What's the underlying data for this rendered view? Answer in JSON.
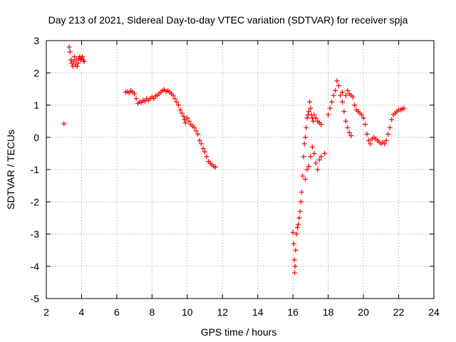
{
  "chart_data": {
    "type": "scatter",
    "title": "Day 213 of 2021, Sidereal Day-to-day VTEC variation (SDTVAR) for receiver spja",
    "xlabel": "GPS time / hours",
    "ylabel": "SDTVAR / TECUs",
    "xlim": [
      2,
      24
    ],
    "ylim": [
      -5,
      3
    ],
    "grid": true,
    "marker": "plus",
    "color": "#ff0000",
    "x_ticks": [
      "2",
      "4",
      "6",
      "8",
      "10",
      "12",
      "14",
      "16",
      "18",
      "20",
      "22",
      "24"
    ],
    "y_ticks": [
      "3",
      "2",
      "1",
      "0",
      "-1",
      "-2",
      "-3",
      "-4",
      "-5"
    ],
    "series": [
      {
        "name": "SDTVAR",
        "points": [
          [
            3.0,
            0.42
          ],
          [
            3.3,
            2.8
          ],
          [
            3.35,
            2.65
          ],
          [
            3.4,
            2.4
          ],
          [
            3.45,
            2.3
          ],
          [
            3.5,
            2.2
          ],
          [
            3.55,
            2.35
          ],
          [
            3.6,
            2.5
          ],
          [
            3.65,
            2.25
          ],
          [
            3.7,
            2.4
          ],
          [
            3.75,
            2.2
          ],
          [
            3.8,
            2.3
          ],
          [
            3.85,
            2.45
          ],
          [
            3.9,
            2.5
          ],
          [
            3.95,
            2.4
          ],
          [
            4.0,
            2.45
          ],
          [
            4.05,
            2.5
          ],
          [
            4.1,
            2.4
          ],
          [
            4.15,
            2.35
          ],
          [
            6.5,
            1.4
          ],
          [
            6.6,
            1.42
          ],
          [
            6.7,
            1.38
          ],
          [
            6.8,
            1.45
          ],
          [
            6.9,
            1.4
          ],
          [
            7.0,
            1.35
          ],
          [
            7.1,
            1.2
          ],
          [
            7.2,
            1.05
          ],
          [
            7.3,
            1.1
          ],
          [
            7.4,
            1.08
          ],
          [
            7.5,
            1.15
          ],
          [
            7.6,
            1.12
          ],
          [
            7.7,
            1.2
          ],
          [
            7.8,
            1.15
          ],
          [
            7.9,
            1.2
          ],
          [
            8.0,
            1.25
          ],
          [
            8.1,
            1.2
          ],
          [
            8.2,
            1.28
          ],
          [
            8.3,
            1.3
          ],
          [
            8.4,
            1.35
          ],
          [
            8.5,
            1.4
          ],
          [
            8.6,
            1.45
          ],
          [
            8.7,
            1.48
          ],
          [
            8.8,
            1.42
          ],
          [
            8.9,
            1.45
          ],
          [
            9.0,
            1.4
          ],
          [
            9.1,
            1.35
          ],
          [
            9.2,
            1.3
          ],
          [
            9.3,
            1.2
          ],
          [
            9.4,
            1.1
          ],
          [
            9.5,
            1.0
          ],
          [
            9.6,
            0.85
          ],
          [
            9.7,
            0.75
          ],
          [
            9.8,
            0.65
          ],
          [
            9.85,
            0.55
          ],
          [
            9.9,
            0.45
          ],
          [
            10.0,
            0.6
          ],
          [
            10.1,
            0.5
          ],
          [
            10.2,
            0.4
          ],
          [
            10.3,
            0.35
          ],
          [
            10.4,
            0.3
          ],
          [
            10.5,
            0.2
          ],
          [
            10.6,
            0.1
          ],
          [
            10.7,
            -0.1
          ],
          [
            10.8,
            -0.2
          ],
          [
            10.9,
            -0.35
          ],
          [
            11.0,
            -0.45
          ],
          [
            11.1,
            -0.6
          ],
          [
            11.2,
            -0.75
          ],
          [
            11.3,
            -0.8
          ],
          [
            11.4,
            -0.85
          ],
          [
            11.5,
            -0.9
          ],
          [
            11.6,
            -0.92
          ],
          [
            16.0,
            -2.95
          ],
          [
            16.05,
            -3.3
          ],
          [
            16.08,
            -3.8
          ],
          [
            16.1,
            -4.2
          ],
          [
            16.12,
            -4.0
          ],
          [
            16.15,
            -3.5
          ],
          [
            16.2,
            -3.0
          ],
          [
            16.25,
            -2.8
          ],
          [
            16.3,
            -2.7
          ],
          [
            16.35,
            -2.5
          ],
          [
            16.4,
            -2.3
          ],
          [
            16.45,
            -2.0
          ],
          [
            16.5,
            -1.7
          ],
          [
            16.55,
            -1.2
          ],
          [
            16.6,
            -0.6
          ],
          [
            16.65,
            -0.2
          ],
          [
            16.7,
            0.0
          ],
          [
            16.75,
            0.3
          ],
          [
            16.8,
            0.6
          ],
          [
            16.85,
            0.7
          ],
          [
            16.9,
            0.8
          ],
          [
            16.95,
            1.1
          ],
          [
            17.0,
            0.9
          ],
          [
            17.05,
            0.7
          ],
          [
            17.1,
            0.6
          ],
          [
            17.15,
            0.5
          ],
          [
            17.2,
            0.7
          ],
          [
            17.3,
            0.6
          ],
          [
            17.4,
            0.5
          ],
          [
            17.5,
            0.45
          ],
          [
            17.6,
            0.4
          ],
          [
            16.7,
            -1.3
          ],
          [
            16.8,
            -1.0
          ],
          [
            16.9,
            -0.9
          ],
          [
            17.0,
            -0.6
          ],
          [
            17.1,
            -0.3
          ],
          [
            17.2,
            -0.5
          ],
          [
            17.3,
            -0.8
          ],
          [
            17.4,
            -1.0
          ],
          [
            17.5,
            -0.7
          ],
          [
            17.6,
            -0.6
          ],
          [
            17.8,
            -0.5
          ],
          [
            18.0,
            0.7
          ],
          [
            18.1,
            0.9
          ],
          [
            18.2,
            1.1
          ],
          [
            18.3,
            1.3
          ],
          [
            18.4,
            1.45
          ],
          [
            18.5,
            1.75
          ],
          [
            18.6,
            1.6
          ],
          [
            18.7,
            1.3
          ],
          [
            18.8,
            1.1
          ],
          [
            18.9,
            0.8
          ],
          [
            19.0,
            0.5
          ],
          [
            19.1,
            0.3
          ],
          [
            19.2,
            0.15
          ],
          [
            19.3,
            0.05
          ],
          [
            18.8,
            1.4
          ],
          [
            19.0,
            1.3
          ],
          [
            19.1,
            1.45
          ],
          [
            19.2,
            1.35
          ],
          [
            19.3,
            1.3
          ],
          [
            19.4,
            1.25
          ],
          [
            19.5,
            1.0
          ],
          [
            19.6,
            0.85
          ],
          [
            19.7,
            0.8
          ],
          [
            19.8,
            0.75
          ],
          [
            19.9,
            0.7
          ],
          [
            20.0,
            0.6
          ],
          [
            20.1,
            0.4
          ],
          [
            20.2,
            0.1
          ],
          [
            20.3,
            -0.1
          ],
          [
            20.4,
            -0.2
          ],
          [
            20.5,
            -0.05
          ],
          [
            20.6,
            0.0
          ],
          [
            20.7,
            -0.05
          ],
          [
            20.8,
            -0.1
          ],
          [
            20.9,
            -0.15
          ],
          [
            21.0,
            -0.2
          ],
          [
            21.1,
            -0.15
          ],
          [
            21.2,
            -0.2
          ],
          [
            21.3,
            -0.1
          ],
          [
            21.4,
            0.1
          ],
          [
            21.5,
            0.3
          ],
          [
            21.6,
            0.55
          ],
          [
            21.7,
            0.7
          ],
          [
            21.8,
            0.75
          ],
          [
            21.9,
            0.8
          ],
          [
            22.0,
            0.85
          ],
          [
            22.1,
            0.85
          ],
          [
            22.2,
            0.88
          ],
          [
            22.3,
            0.9
          ]
        ]
      }
    ]
  }
}
